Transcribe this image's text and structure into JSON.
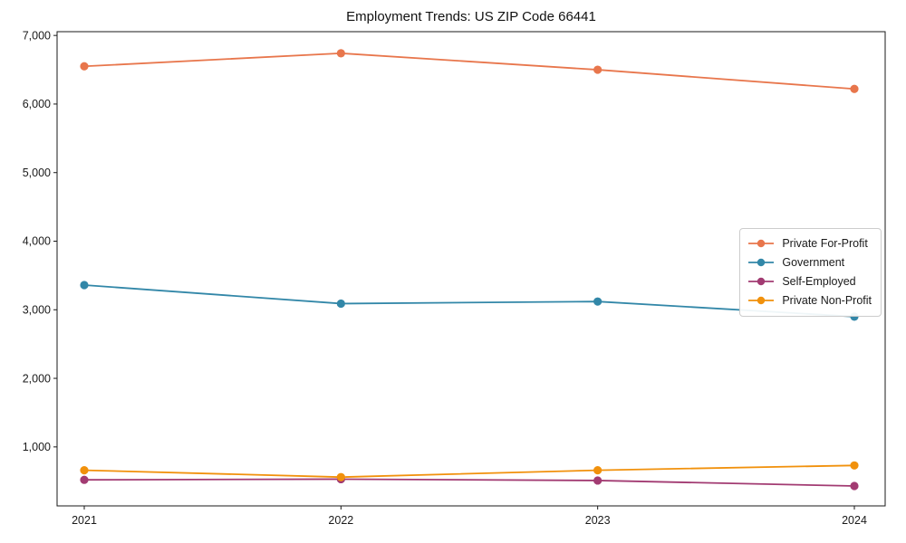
{
  "chart_data": {
    "type": "line",
    "title": "Employment Trends: US ZIP Code 66441",
    "xlabel": "",
    "ylabel": "",
    "x": [
      2021,
      2022,
      2023,
      2024
    ],
    "x_tick_labels": [
      "2021",
      "2022",
      "2023",
      "2024"
    ],
    "y_ticks": [
      {
        "value": 1000,
        "label": "1,000"
      },
      {
        "value": 2000,
        "label": "2,000"
      },
      {
        "value": 3000,
        "label": "3,000"
      },
      {
        "value": 4000,
        "label": "4,000"
      },
      {
        "value": 5000,
        "label": "5,000"
      },
      {
        "value": 6000,
        "label": "6,000"
      },
      {
        "value": 7000,
        "label": "7,000"
      }
    ],
    "ylim": [
      140,
      7055
    ],
    "grid": false,
    "legend_position": "center-right",
    "series": [
      {
        "name": "Private For-Profit",
        "color": "#E8764C",
        "values": [
          6550,
          6740,
          6500,
          6220
        ]
      },
      {
        "name": "Government",
        "color": "#3287A8",
        "values": [
          3360,
          3090,
          3120,
          2900
        ]
      },
      {
        "name": "Self-Employed",
        "color": "#A23B72",
        "values": [
          520,
          530,
          510,
          430
        ]
      },
      {
        "name": "Private Non-Profit",
        "color": "#F1910C",
        "values": [
          660,
          560,
          660,
          730
        ]
      }
    ]
  }
}
